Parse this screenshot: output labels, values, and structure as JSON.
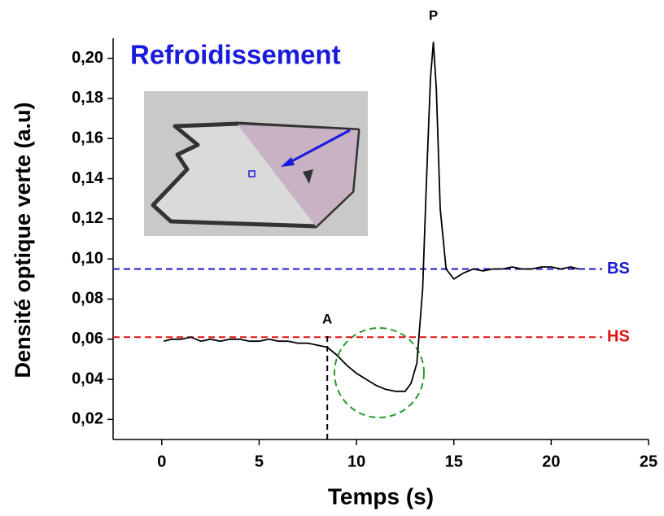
{
  "chart_data": {
    "type": "line",
    "title": "Refroidissement",
    "x_label": "Temps (s)",
    "y_label": "Densité optique verte (a.u)",
    "color": "#000000",
    "x": [
      0.1,
      0.5,
      1,
      1.5,
      2,
      2.5,
      3,
      3.5,
      4,
      4.5,
      5,
      5.5,
      6,
      6.5,
      7,
      7.5,
      8,
      8.5,
      9,
      9.5,
      10,
      10.5,
      11,
      11.5,
      12,
      12.5,
      12.8,
      13.1,
      13.4,
      13.6,
      13.8,
      13.95,
      14.1,
      14.3,
      14.6,
      15,
      15.5,
      16,
      16.5,
      17,
      17.5,
      18,
      18.5,
      19,
      19.5,
      20,
      20.5,
      21,
      21.4
    ],
    "values": [
      0.059,
      0.06,
      0.06,
      0.061,
      0.059,
      0.06,
      0.059,
      0.06,
      0.06,
      0.059,
      0.059,
      0.06,
      0.059,
      0.059,
      0.058,
      0.058,
      0.057,
      0.056,
      0.052,
      0.047,
      0.043,
      0.04,
      0.037,
      0.035,
      0.034,
      0.034,
      0.038,
      0.048,
      0.085,
      0.14,
      0.19,
      0.208,
      0.185,
      0.125,
      0.095,
      0.09,
      0.093,
      0.095,
      0.094,
      0.095,
      0.095,
      0.096,
      0.095,
      0.095,
      0.096,
      0.096,
      0.095,
      0.096,
      0.095
    ],
    "xlim": [
      -2.5,
      25
    ],
    "xticks": [
      0,
      5,
      10,
      15,
      20,
      25
    ],
    "ylim": [
      0.01,
      0.21
    ],
    "yticks": [
      {
        "value": 0.02,
        "label": "0,02"
      },
      {
        "value": 0.04,
        "label": "0,04"
      },
      {
        "value": 0.06,
        "label": "0,06"
      },
      {
        "value": 0.08,
        "label": "0,08"
      },
      {
        "value": 0.1,
        "label": "0,10"
      },
      {
        "value": 0.12,
        "label": "0,12"
      },
      {
        "value": 0.14,
        "label": "0,14"
      },
      {
        "value": 0.16,
        "label": "0,16"
      },
      {
        "value": 0.18,
        "label": "0,18"
      },
      {
        "value": 0.2,
        "label": "0,20"
      }
    ],
    "hlines": [
      {
        "label": "BS",
        "value": 0.095,
        "color": "#1a1acc"
      },
      {
        "label": "HS",
        "value": 0.061,
        "color": "#e01010"
      }
    ],
    "vlines": [
      {
        "label": "A",
        "value": 8.5
      }
    ],
    "annotations": [
      {
        "text": "P",
        "x": 13.95
      }
    ]
  }
}
